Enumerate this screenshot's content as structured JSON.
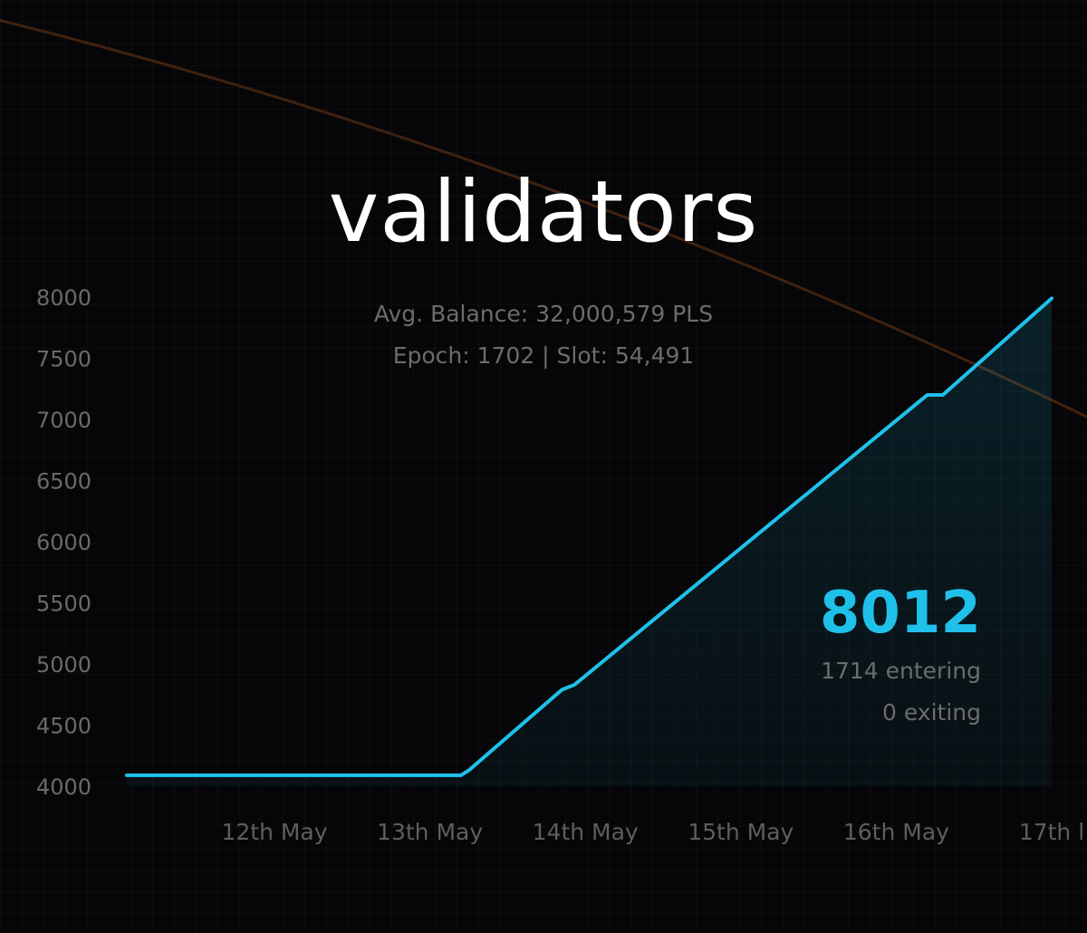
{
  "title": "validators",
  "subtitle": {
    "avg_balance": "Avg. Balance: 32,000,579 PLS",
    "epoch_slot": "Epoch: 1702 | Slot: 54,491"
  },
  "summary": {
    "total": "8012",
    "entering": "1714 entering",
    "exiting": "0 exiting"
  },
  "colors": {
    "line": "#1fc1ea",
    "background": "#060608",
    "accent_curve": "#5a2e12"
  },
  "chart_data": {
    "type": "area",
    "title": "validators",
    "xlabel": "",
    "ylabel": "",
    "ylim": [
      4000,
      8000
    ],
    "y_ticks": [
      "8000",
      "7500",
      "7000",
      "6500",
      "6000",
      "5500",
      "5000",
      "4500",
      "4000"
    ],
    "x_ticks": [
      {
        "label": "12th May",
        "day": 12
      },
      {
        "label": "13th May",
        "day": 13
      },
      {
        "label": "14th May",
        "day": 14
      },
      {
        "label": "15th May",
        "day": 15
      },
      {
        "label": "16th May",
        "day": 16
      },
      {
        "label": "17th l",
        "day": 17
      }
    ],
    "grid": true,
    "series": [
      {
        "points": [
          {
            "x": 11.05,
            "y": 4090
          },
          {
            "x": 13.2,
            "y": 4090
          },
          {
            "x": 13.25,
            "y": 4130
          },
          {
            "x": 13.85,
            "y": 4790
          },
          {
            "x": 13.93,
            "y": 4830
          },
          {
            "x": 16.2,
            "y": 7200
          },
          {
            "x": 16.3,
            "y": 7200
          },
          {
            "x": 17.0,
            "y": 7990
          }
        ]
      }
    ]
  }
}
